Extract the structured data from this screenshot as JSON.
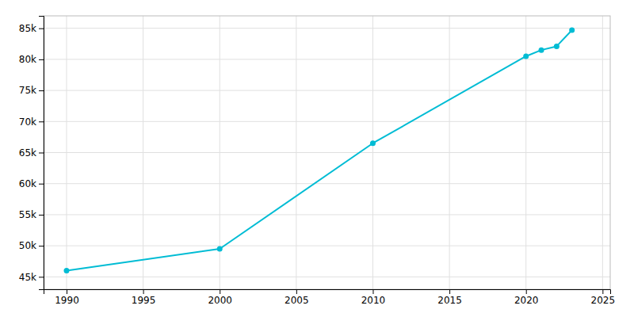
{
  "chart_data": {
    "type": "line",
    "x": [
      1990,
      2000,
      2010,
      2020,
      2021,
      2022,
      2023
    ],
    "values": [
      46000,
      49500,
      66500,
      80500,
      81500,
      82100,
      84700
    ],
    "color": "#00BCD4",
    "marker": "circle",
    "xlim": [
      1988.5,
      2025.5
    ],
    "xticks": [
      1990,
      1995,
      2000,
      2005,
      2010,
      2015,
      2020,
      2025
    ],
    "ylim": [
      43000,
      87000
    ],
    "yticks": [
      {
        "value": 45000,
        "label": "45k"
      },
      {
        "value": 50000,
        "label": "50k"
      },
      {
        "value": 55000,
        "label": "55k"
      },
      {
        "value": 60000,
        "label": "60k"
      },
      {
        "value": 65000,
        "label": "65k"
      },
      {
        "value": 70000,
        "label": "70k"
      },
      {
        "value": 75000,
        "label": "75k"
      },
      {
        "value": 80000,
        "label": "80k"
      },
      {
        "value": 85000,
        "label": "85k"
      }
    ],
    "grid": true
  }
}
